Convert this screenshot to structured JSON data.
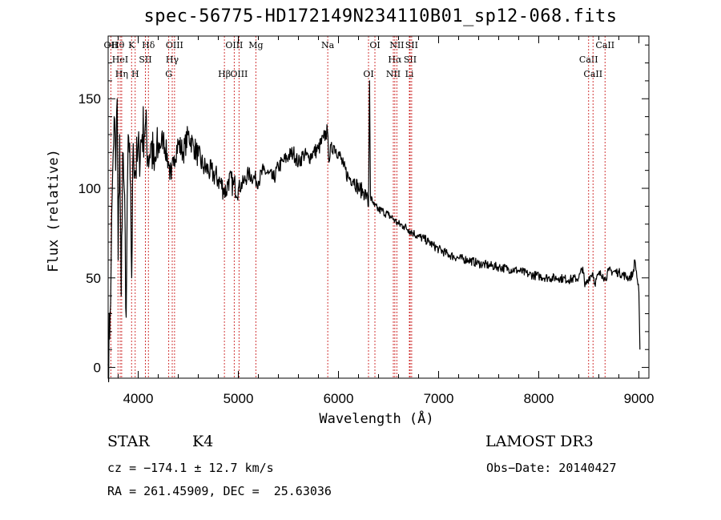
{
  "chart_data": {
    "type": "line",
    "title": "spec-56775-HD172149N234110B01_sp12-068.fits",
    "xlabel": "Wavelength (Å)",
    "ylabel": "Flux (relative)",
    "xlim": [
      3700,
      9100
    ],
    "ylim": [
      -6,
      185
    ],
    "x_ticks": [
      4000,
      5000,
      6000,
      7000,
      8000,
      9000
    ],
    "x_tick_labels": [
      "4000",
      "5000",
      "6000",
      "7000",
      "8000",
      "9000"
    ],
    "y_ticks": [
      0,
      50,
      100,
      150
    ],
    "y_tick_labels": [
      "0",
      "50",
      "100",
      "150"
    ],
    "grid": false,
    "line_color": "#000000",
    "marker_line_color": "#cc2222",
    "spectrum": {
      "name": "flux",
      "x": [
        3700,
        3720,
        3730,
        3740,
        3750,
        3760,
        3775,
        3790,
        3800,
        3815,
        3830,
        3845,
        3860,
        3880,
        3900,
        3920,
        3935,
        3950,
        3970,
        3990,
        4010,
        4040,
        4070,
        4100,
        4130,
        4160,
        4200,
        4250,
        4300,
        4330,
        4360,
        4400,
        4450,
        4500,
        4550,
        4600,
        4650,
        4700,
        4750,
        4800,
        4850,
        4880,
        4900,
        4950,
        5000,
        5050,
        5100,
        5150,
        5200,
        5250,
        5300,
        5350,
        5400,
        5450,
        5500,
        5550,
        5600,
        5650,
        5700,
        5750,
        5800,
        5850,
        5890,
        5900,
        5950,
        6000,
        6050,
        6100,
        6150,
        6200,
        6250,
        6280,
        6300,
        6310,
        6320,
        6340,
        6360,
        6400,
        6450,
        6500,
        6550,
        6563,
        6600,
        6650,
        6700,
        6750,
        6800,
        6850,
        6900,
        6950,
        7000,
        7100,
        7200,
        7300,
        7400,
        7500,
        7600,
        7700,
        7800,
        7900,
        8000,
        8100,
        8200,
        8300,
        8400,
        8440,
        8460,
        8500,
        8540,
        8560,
        8600,
        8640,
        8660,
        8700,
        8800,
        8900,
        8940,
        8960,
        9000,
        9010
      ],
      "y": [
        2,
        30,
        60,
        95,
        120,
        140,
        110,
        150,
        60,
        130,
        40,
        120,
        100,
        28,
        130,
        105,
        50,
        125,
        110,
        115,
        120,
        130,
        135,
        118,
        125,
        110,
        122,
        128,
        115,
        105,
        118,
        125,
        120,
        130,
        124,
        118,
        112,
        110,
        108,
        105,
        100,
        98,
        105,
        102,
        100,
        103,
        108,
        106,
        104,
        110,
        108,
        105,
        112,
        115,
        118,
        120,
        114,
        119,
        117,
        120,
        122,
        128,
        132,
        118,
        124,
        120,
        112,
        106,
        105,
        100,
        98,
        96,
        90,
        160,
        95,
        92,
        90,
        88,
        87,
        85,
        83,
        82,
        80,
        79,
        77,
        75,
        73,
        72,
        70,
        68,
        66,
        63,
        61,
        60,
        58,
        57,
        56,
        55,
        54,
        52,
        51,
        50,
        50,
        49,
        50,
        56,
        45,
        50,
        53,
        47,
        52,
        52,
        49,
        54,
        53,
        50,
        52,
        60,
        42,
        10
      ]
    },
    "line_markers": [
      {
        "label": "OII",
        "x": 3727
      },
      {
        "label": "Hθ",
        "x": 3798
      },
      {
        "label": "HeI",
        "x": 3820
      },
      {
        "label": "K",
        "x": 3934
      },
      {
        "label": "Hη",
        "x": 3835
      },
      {
        "label": "H",
        "x": 3970
      },
      {
        "label": "Hδ",
        "x": 4102
      },
      {
        "label": "SII",
        "x": 4072
      },
      {
        "label": "OIII",
        "x": 4363
      },
      {
        "label": "Hγ",
        "x": 4340
      },
      {
        "label": "G",
        "x": 4305
      },
      {
        "label": "Hβ",
        "x": 4861
      },
      {
        "label": "OIII",
        "x": 4959
      },
      {
        "label": "OIII",
        "x": 5007
      },
      {
        "label": "Mg",
        "x": 5175
      },
      {
        "label": "Na",
        "x": 5893
      },
      {
        "label": "OI",
        "x": 6300
      },
      {
        "label": "OI",
        "x": 6364
      },
      {
        "label": "Hα",
        "x": 6563
      },
      {
        "label": "NII",
        "x": 6548
      },
      {
        "label": "NII",
        "x": 6583
      },
      {
        "label": "SII",
        "x": 6716
      },
      {
        "label": "Li",
        "x": 6708
      },
      {
        "label": "SII",
        "x": 6731
      },
      {
        "label": "CaII",
        "x": 8498
      },
      {
        "label": "CaII",
        "x": 8542
      },
      {
        "label": "CaII",
        "x": 8662
      }
    ]
  },
  "footer": {
    "object_class": "STAR",
    "subclass": "K4",
    "survey": "LAMOST DR3",
    "cz": "cz = −174.1 ± 12.7 km/s",
    "obs_date": "Obs−Date: 20140427",
    "coords": "RA = 261.45909, DEC =  25.63036"
  }
}
